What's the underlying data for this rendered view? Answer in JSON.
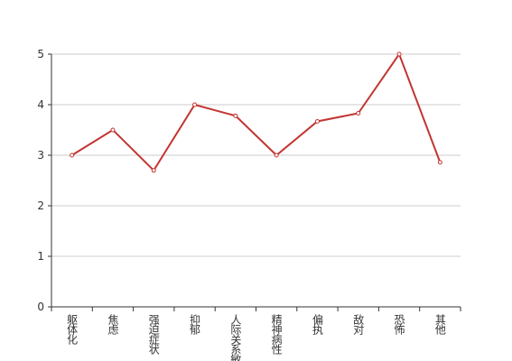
{
  "chart_data": {
    "type": "line",
    "categories": [
      "躯体化",
      "焦虑",
      "强迫症状",
      "抑郁",
      "人际关系敏感",
      "精神病性",
      "偏执",
      "敌对",
      "恐怖",
      "其他"
    ],
    "values": [
      3.0,
      3.5,
      2.7,
      4.0,
      3.78,
      3.0,
      3.67,
      3.83,
      5.0,
      2.86
    ],
    "color": "#c23531",
    "ylim": [
      0,
      5
    ],
    "yticks": [
      0,
      1,
      2,
      3,
      4,
      5
    ],
    "grid": true
  }
}
